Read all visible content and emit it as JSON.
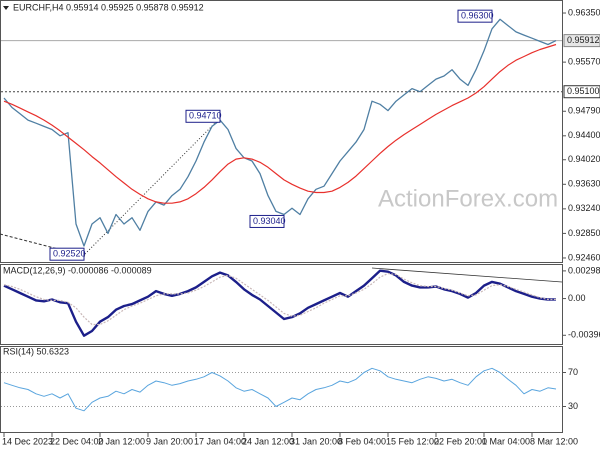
{
  "watermark": "ActionForex.com",
  "chart_data": [
    {
      "type": "line",
      "panel": "price",
      "title": "EURCHF,H4 0.95914 0.95925 0.95878 0.95912",
      "xlim": [
        0,
        69
      ],
      "ylim": [
        0.92396,
        0.96525
      ],
      "yticks": [
        {
          "value": 0.9635,
          "label": "0.96350"
        },
        {
          "value": 0.9557,
          "label": "0.95570"
        },
        {
          "value": 0.9479,
          "label": "0.94790"
        },
        {
          "value": 0.944,
          "label": "0.94400"
        },
        {
          "value": 0.9402,
          "label": "0.94020"
        },
        {
          "value": 0.9363,
          "label": "0.93630"
        },
        {
          "value": 0.9324,
          "label": "0.93240"
        },
        {
          "value": 0.9285,
          "label": "0.92850"
        },
        {
          "value": 0.9246,
          "label": "0.92460"
        }
      ],
      "last_price": 0.95912,
      "levels": [
        {
          "value": 0.951,
          "label": "0.95100"
        }
      ],
      "annotations": [
        {
          "x": 61,
          "value": 0.963,
          "label": "0.96300"
        },
        {
          "x": 27,
          "value": 0.9471,
          "label": "0.94710"
        },
        {
          "x": 35,
          "value": 0.9304,
          "label": "0.93040"
        },
        {
          "x": 10,
          "value": 0.9252,
          "label": "0.92520"
        }
      ],
      "series": [
        {
          "name": "EURCHF",
          "color": "#4f7fa3",
          "width": 1.3,
          "values": [
            0.95,
            0.9485,
            0.9475,
            0.9465,
            0.946,
            0.9455,
            0.945,
            0.944,
            0.9445,
            0.93,
            0.9265,
            0.93,
            0.931,
            0.9285,
            0.9315,
            0.93,
            0.931,
            0.929,
            0.932,
            0.9335,
            0.933,
            0.9345,
            0.9355,
            0.9375,
            0.94,
            0.943,
            0.9455,
            0.9465,
            0.945,
            0.942,
            0.9405,
            0.94,
            0.938,
            0.9345,
            0.932,
            0.9315,
            0.9325,
            0.9315,
            0.934,
            0.9355,
            0.936,
            0.938,
            0.94,
            0.9415,
            0.943,
            0.945,
            0.9495,
            0.949,
            0.948,
            0.9495,
            0.9505,
            0.9515,
            0.951,
            0.952,
            0.953,
            0.9535,
            0.9545,
            0.953,
            0.952,
            0.9545,
            0.9575,
            0.961,
            0.9625,
            0.9615,
            0.9605,
            0.96,
            0.9595,
            0.959,
            0.9585,
            0.95912
          ]
        },
        {
          "name": "MA",
          "color": "#e8302c",
          "width": 1.2,
          "values": [
            0.9495,
            0.949,
            0.9484,
            0.9478,
            0.9472,
            0.9465,
            0.9457,
            0.9448,
            0.9438,
            0.9428,
            0.9418,
            0.9407,
            0.9397,
            0.9386,
            0.9375,
            0.9365,
            0.9355,
            0.9347,
            0.934,
            0.9335,
            0.9333,
            0.9333,
            0.9335,
            0.934,
            0.9348,
            0.9358,
            0.937,
            0.9383,
            0.9395,
            0.9403,
            0.9405,
            0.9403,
            0.9398,
            0.939,
            0.938,
            0.937,
            0.9363,
            0.9357,
            0.9352,
            0.935,
            0.935,
            0.9352,
            0.9358,
            0.9366,
            0.9376,
            0.9388,
            0.94,
            0.9412,
            0.9423,
            0.9433,
            0.9442,
            0.945,
            0.9458,
            0.9466,
            0.9474,
            0.9481,
            0.9488,
            0.9494,
            0.95,
            0.9508,
            0.9518,
            0.953,
            0.9542,
            0.9552,
            0.956,
            0.9566,
            0.9572,
            0.9577,
            0.9581,
            0.9585
          ]
        }
      ]
    },
    {
      "type": "line",
      "panel": "macd",
      "title": "MACD(12,26,9) -0.000086 -0.000089",
      "xlim": [
        0,
        69
      ],
      "ylim": [
        -0.0049,
        0.00362
      ],
      "yticks": [
        0.002985,
        {
          "value": 0,
          "label": "0.00"
        },
        -0.00396
      ],
      "series": [
        {
          "name": "MACD",
          "color": "#1c1f8a",
          "width": 2.4,
          "values": [
            0.0014,
            0.001,
            0.0006,
            0.0002,
            -0.0002,
            -0.0003,
            -0.0001,
            -0.0004,
            -0.0005,
            -0.0025,
            -0.004,
            -0.0035,
            -0.0025,
            -0.002,
            -0.0012,
            -0.0008,
            -0.0006,
            -0.0002,
            0.0002,
            0.0008,
            0.0005,
            0.0003,
            0.0005,
            0.0008,
            0.0012,
            0.0018,
            0.0024,
            0.0028,
            0.0025,
            0.0018,
            0.001,
            0.0004,
            -0.0001,
            -0.0008,
            -0.0015,
            -0.0022,
            -0.002,
            -0.0016,
            -0.001,
            -0.0006,
            -0.0002,
            0.0002,
            0.0006,
            0.0002,
            0.0008,
            0.0014,
            0.0022,
            0.003,
            0.0029,
            0.0025,
            0.0018,
            0.0014,
            0.0012,
            0.0012,
            0.0013,
            0.001,
            0.0008,
            0.0005,
            0.0001,
            0.0006,
            0.0014,
            0.0018,
            0.0016,
            0.0012,
            0.0008,
            0.0005,
            0.0002,
            0.0,
            -0.0001,
            -8.6e-05
          ]
        },
        {
          "name": "Signal",
          "color": "#c9b8b8",
          "width": 1.2,
          "values": [
            0.0015,
            0.0013,
            0.001,
            0.0006,
            0.0002,
            -0.0001,
            -0.0002,
            -0.0002,
            -0.0004,
            -0.001,
            -0.002,
            -0.0028,
            -0.0028,
            -0.0024,
            -0.0018,
            -0.0012,
            -0.0008,
            -0.0005,
            -0.0001,
            0.0003,
            0.0005,
            0.0005,
            0.0005,
            0.0006,
            0.0009,
            0.0013,
            0.0018,
            0.0023,
            0.0025,
            0.0022,
            0.0016,
            0.001,
            0.0004,
            -0.0002,
            -0.0009,
            -0.0016,
            -0.0019,
            -0.0018,
            -0.0014,
            -0.001,
            -0.0005,
            -0.0001,
            0.0003,
            0.0003,
            0.0006,
            0.001,
            0.0016,
            0.0023,
            0.0027,
            0.0026,
            0.0021,
            0.0017,
            0.0014,
            0.0013,
            0.0013,
            0.0011,
            0.0009,
            0.0006,
            0.0003,
            0.0004,
            0.0009,
            0.0014,
            0.0015,
            0.0013,
            0.001,
            0.0007,
            0.0004,
            0.0001,
            -0.0001,
            -8.9e-05
          ]
        }
      ]
    },
    {
      "type": "line",
      "panel": "rsi",
      "title": "RSI(14) 50.6323",
      "xlim": [
        0,
        69
      ],
      "ylim": [
        0,
        100
      ],
      "yticks": [
        70,
        30
      ],
      "grid": true,
      "xticks": [
        {
          "value": 0,
          "label": "14 Dec 2023"
        },
        {
          "value": 6,
          "label": "22 Dec 04:00"
        },
        {
          "value": 12,
          "label": "2 Jan 12:00"
        },
        {
          "value": 18,
          "label": "9 Jan 20:00"
        },
        {
          "value": 24,
          "label": "17 Jan 04:00"
        },
        {
          "value": 30,
          "label": "24 Jan 12:00"
        },
        {
          "value": 36,
          "label": "31 Jan 20:00"
        },
        {
          "value": 42,
          "label": "8 Feb 04:00"
        },
        {
          "value": 48,
          "label": "15 Feb 12:00"
        },
        {
          "value": 54,
          "label": "22 Feb 20:00"
        },
        {
          "value": 60,
          "label": "1 Mar 04:00"
        },
        {
          "value": 66,
          "label": "8 Mar 12:00"
        }
      ],
      "series": [
        {
          "name": "RSI",
          "color": "#5aa5de",
          "width": 1,
          "values": [
            58,
            55,
            52,
            50,
            45,
            42,
            45,
            40,
            45,
            28,
            25,
            35,
            40,
            42,
            48,
            45,
            50,
            47,
            55,
            60,
            58,
            55,
            57,
            60,
            62,
            65,
            70,
            66,
            60,
            52,
            48,
            50,
            45,
            40,
            30,
            35,
            40,
            38,
            45,
            50,
            52,
            55,
            60,
            58,
            62,
            70,
            75,
            72,
            65,
            62,
            60,
            58,
            62,
            65,
            63,
            60,
            62,
            58,
            55,
            65,
            72,
            75,
            70,
            62,
            55,
            45,
            50,
            48,
            52,
            50.6323
          ]
        }
      ]
    }
  ]
}
